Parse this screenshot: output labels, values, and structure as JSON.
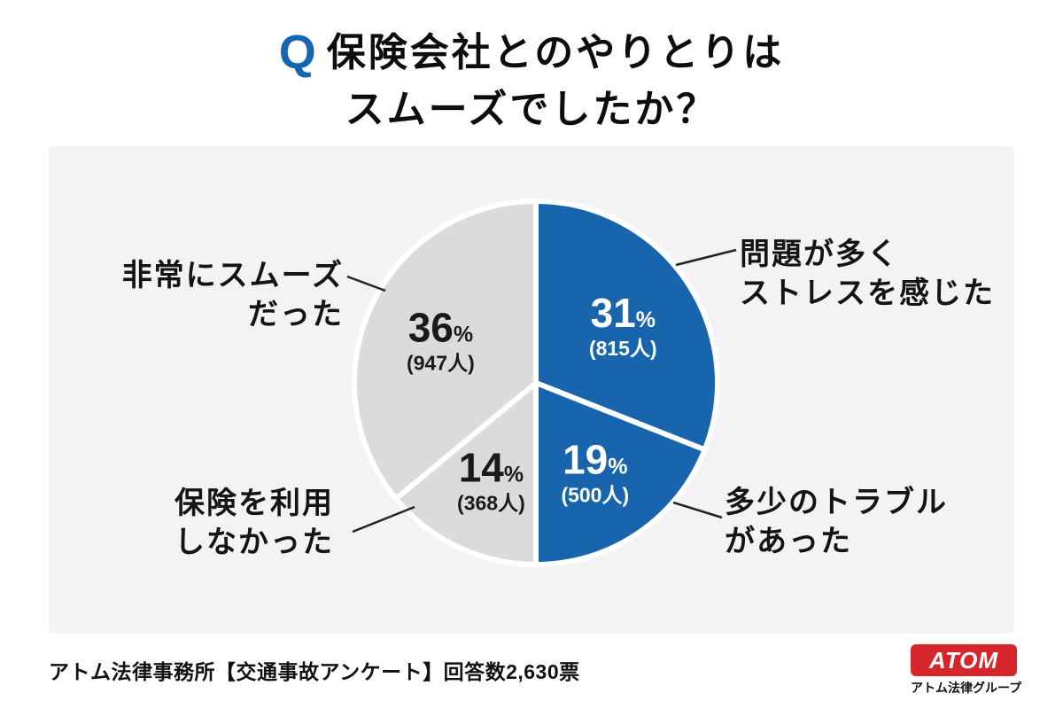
{
  "title": {
    "q_mark": "Q",
    "line1": "保険会社とのやりとりは",
    "line2": "スムーズでしたか？"
  },
  "chart_data": {
    "type": "pie",
    "title": "保険会社とのやりとりはスムーズでしたか？",
    "start_angle_deg": -90,
    "direction": "clockwise",
    "total_responses": 2630,
    "slices": [
      {
        "label": "問題が多くストレスを感じた",
        "percent": 31,
        "count": 815,
        "count_label": "(815人)",
        "color": "#1864ad",
        "text_color": "#ffffff"
      },
      {
        "label": "多少のトラブルがあった",
        "percent": 19,
        "count": 500,
        "count_label": "(500人)",
        "color": "#1864ad",
        "text_color": "#ffffff"
      },
      {
        "label": "保険を利用しなかった",
        "percent": 14,
        "count": 368,
        "count_label": "(368人)",
        "color": "#dbdbdd",
        "text_color": "#1a1a1a"
      },
      {
        "label": "非常にスムーズだった",
        "percent": 36,
        "count": 947,
        "count_label": "(947人)",
        "color": "#dbdbdd",
        "text_color": "#1a1a1a"
      }
    ]
  },
  "callouts": {
    "top_right": {
      "line1": "問題が多く",
      "line2": "ストレスを感じた"
    },
    "bottom_right": {
      "line1": "多少のトラブル",
      "line2": "があった"
    },
    "top_left": {
      "line1": "非常にスムーズ",
      "line2": "だった"
    },
    "bottom_left": {
      "line1": "保険を利用",
      "line2": "しなかった"
    }
  },
  "footer": {
    "source": "アトム法律事務所【交通事故アンケート】回答数2,630票",
    "logo_text": "ATOM",
    "logo_caption": "アトム法律グループ",
    "logo_color": "#d6252c"
  },
  "colors": {
    "q_blue": "#1565b0",
    "accent_blue": "#1864ad",
    "slice_gray": "#dbdbdd",
    "panel_bg": "#f3f3f5"
  }
}
